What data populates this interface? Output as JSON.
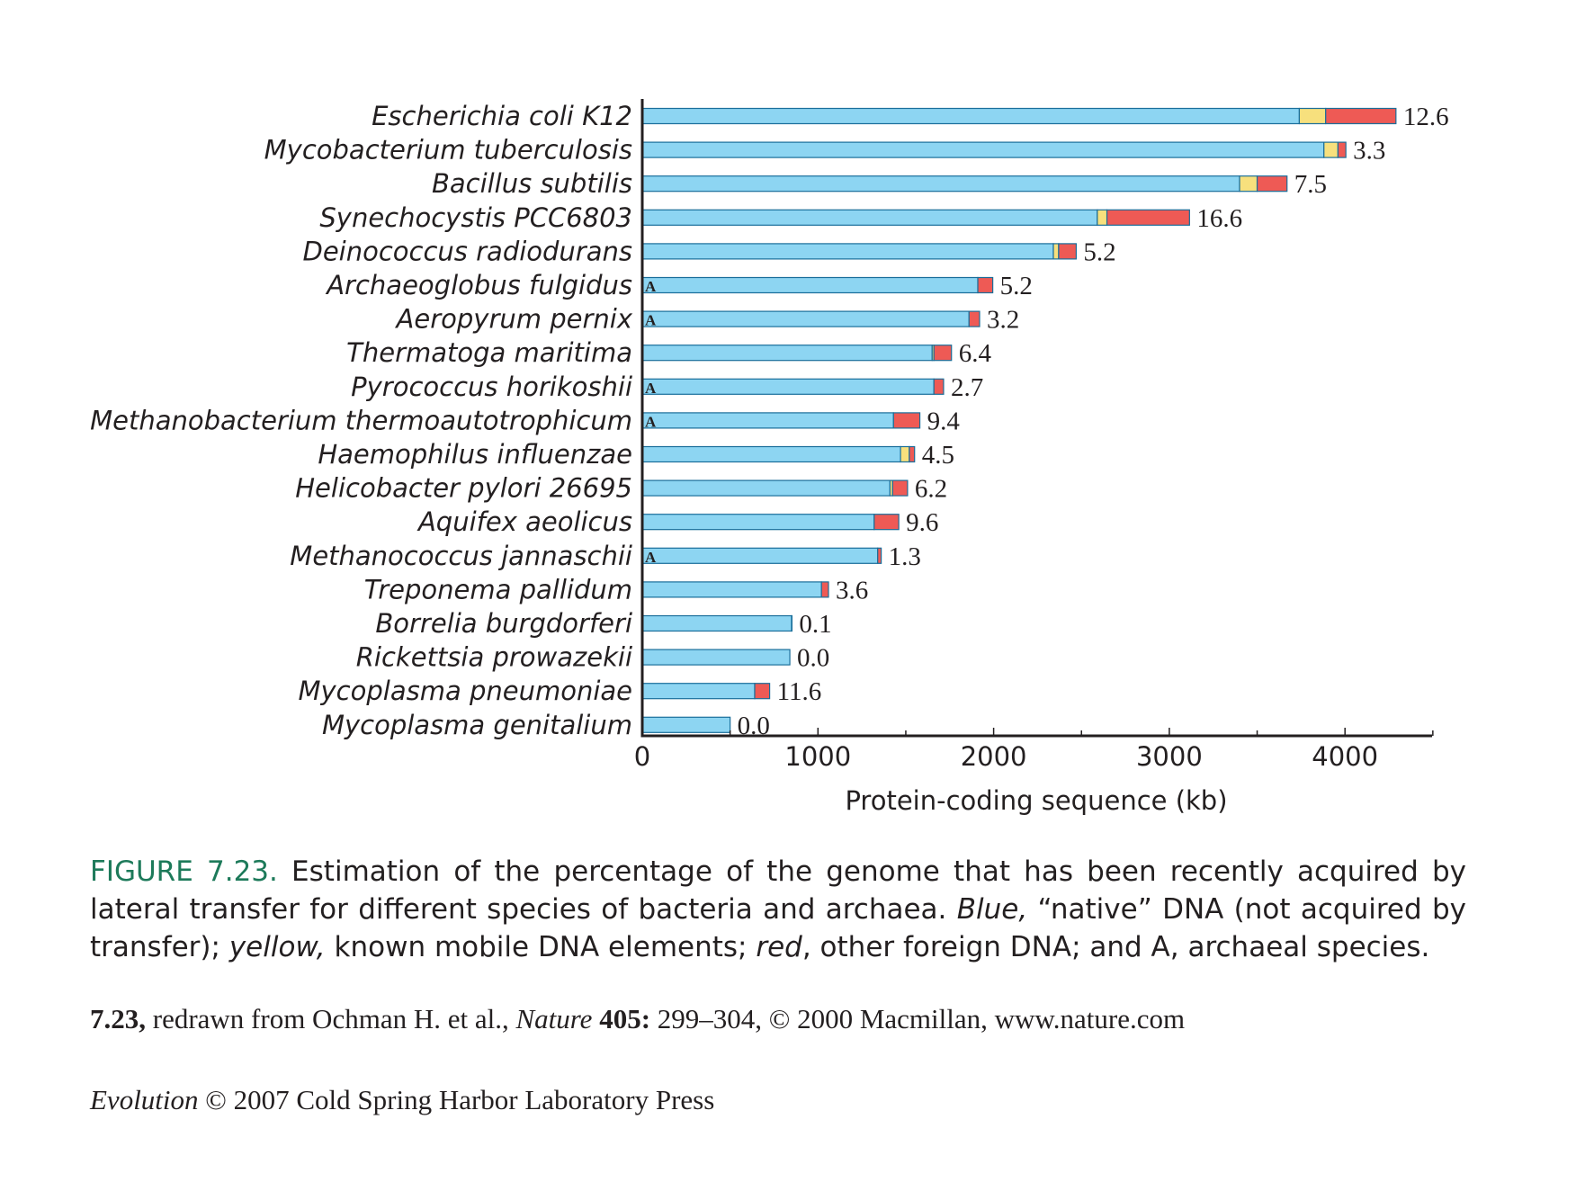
{
  "chart_data": {
    "type": "bar",
    "orientation": "horizontal",
    "stacked": true,
    "xlabel": "Protein-coding sequence (kb)",
    "xlim": [
      0,
      4500
    ],
    "xticks": [
      0,
      1000,
      2000,
      3000,
      4000
    ],
    "colors": {
      "native": "#8dd5f2",
      "mobile": "#f7e07d",
      "foreign": "#ee5a55",
      "outline": "#1a6e9a"
    },
    "categories": [
      "Escherichia coli K12",
      "Mycobacterium tuberculosis",
      "Bacillus subtilis",
      "Synechocystis PCC6803",
      "Deinococcus radiodurans",
      "Archaeoglobus fulgidus",
      "Aeropyrum pernix",
      "Thermatoga maritima",
      "Pyrococcus horikoshii",
      "Methanobacterium thermoautotrophicum",
      "Haemophilus influenzae",
      "Helicobacter pylori 26695",
      "Aquifex aeolicus",
      "Methanococcus jannaschii",
      "Treponema pallidum",
      "Borrelia burgdorferi",
      "Rickettsia prowazekii",
      "Mycoplasma pneumoniae",
      "Mycoplasma genitalium"
    ],
    "series": [
      {
        "key": "native",
        "values": [
          3740,
          3880,
          3400,
          2590,
          2340,
          1910,
          1860,
          1650,
          1660,
          1430,
          1470,
          1410,
          1320,
          1340,
          1020,
          850,
          840,
          640,
          500
        ]
      },
      {
        "key": "mobile",
        "values": [
          150,
          80,
          100,
          55,
          30,
          0,
          0,
          10,
          0,
          0,
          50,
          15,
          0,
          0,
          0,
          0,
          0,
          0,
          0
        ]
      },
      {
        "key": "foreign",
        "values": [
          400,
          45,
          170,
          470,
          100,
          85,
          60,
          100,
          55,
          150,
          30,
          85,
          140,
          20,
          40,
          2,
          0,
          85,
          0
        ]
      }
    ],
    "data_labels": [
      "12.6",
      "3.3",
      "7.5",
      "16.6",
      "5.2",
      "5.2",
      "3.2",
      "6.4",
      "2.7",
      "9.4",
      "4.5",
      "6.2",
      "9.6",
      "1.3",
      "3.6",
      "0.1",
      "0.0",
      "11.6",
      "0.0"
    ],
    "archaeal": [
      false,
      false,
      false,
      false,
      false,
      true,
      true,
      false,
      true,
      true,
      false,
      false,
      false,
      true,
      false,
      false,
      false,
      false,
      false
    ],
    "archaeal_marker": "A"
  },
  "caption": {
    "figure_label": "FIGURE 7.23.",
    "t1": " Estimation of the percentage of the genome that has been recently acquired by lateral transfer for different species of bacteria and archaea. ",
    "blue": "Blue,",
    "t2": " “native” DNA (not acquired by transfer); ",
    "yellow": "yellow,",
    "t3": " known mobile DNA elements; ",
    "red": "red",
    "t4": ", other foreign DNA; and A, archaeal species."
  },
  "credit": {
    "ref": "7.23,",
    "t1": " redrawn from Ochman H. et al., ",
    "journal": "Nature",
    "volume": " 405:",
    "t2": " 299–304, © 2000 Macmillan, www.nature.com"
  },
  "publisher": {
    "book": "Evolution",
    "text": " © 2007 Cold Spring Harbor Laboratory Press"
  }
}
